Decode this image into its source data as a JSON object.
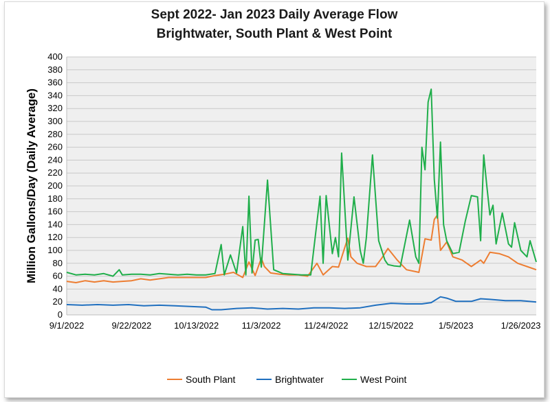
{
  "chart_data": {
    "type": "line",
    "title": "Sept 2022- Jan 2023 Daily Average Flow",
    "subtitle": "Brightwater, South Plant & West Point",
    "xlabel": "",
    "ylabel": "Million Gallons/Day (Daily Average)",
    "ylim": [
      0,
      400
    ],
    "ytick_step": 20,
    "x_start": "9/1/2022",
    "x_end": "1/31/2023",
    "x_ticks": [
      "9/1/2022",
      "9/22/2022",
      "10/13/2022",
      "11/3/2022",
      "11/24/2022",
      "12/15/2022",
      "1/5/2023",
      "1/26/2023"
    ],
    "grid": true,
    "legend_position": "bottom",
    "series": [
      {
        "name": "South Plant",
        "color": "#ED7D31",
        "x": [
          "9/1/2022",
          "9/4/2022",
          "9/7/2022",
          "9/10/2022",
          "9/13/2022",
          "9/16/2022",
          "9/19/2022",
          "9/22/2022",
          "9/25/2022",
          "9/28/2022",
          "10/1/2022",
          "10/4/2022",
          "10/7/2022",
          "10/10/2022",
          "10/13/2022",
          "10/16/2022",
          "10/19/2022",
          "10/22/2022",
          "10/25/2022",
          "10/28/2022",
          "10/30/2022",
          "11/1/2022",
          "11/3/2022",
          "11/4/2022",
          "11/6/2022",
          "11/9/2022",
          "11/12/2022",
          "11/15/2022",
          "11/18/2022",
          "11/21/2022",
          "11/23/2022",
          "11/26/2022",
          "11/28/2022",
          "12/1/2022",
          "12/2/2022",
          "12/4/2022",
          "12/7/2022",
          "12/10/2022",
          "12/12/2022",
          "12/14/2022",
          "12/17/2022",
          "12/20/2022",
          "12/23/2022",
          "12/24/2022",
          "12/26/2022",
          "12/28/2022",
          "12/29/2022",
          "12/30/2022",
          "12/31/2022",
          "1/2/2023",
          "1/4/2023",
          "1/7/2023",
          "1/10/2023",
          "1/13/2023",
          "1/14/2023",
          "1/16/2023",
          "1/19/2023",
          "1/22/2023",
          "1/25/2023",
          "1/28/2023",
          "1/31/2023"
        ],
        "values": [
          52,
          50,
          53,
          51,
          53,
          51,
          52,
          53,
          56,
          54,
          56,
          58,
          58,
          58,
          58,
          58,
          61,
          63,
          66,
          58,
          82,
          61,
          88,
          75,
          65,
          63,
          62,
          62,
          60,
          80,
          62,
          75,
          74,
          119,
          90,
          80,
          75,
          75,
          88,
          103,
          85,
          70,
          67,
          66,
          118,
          116,
          148,
          155,
          100,
          113,
          90,
          85,
          75,
          85,
          80,
          97,
          95,
          90,
          80,
          75,
          70
        ],
        "values_note": "omit"
      },
      {
        "name": "Brightwater",
        "color": "#1F6FBF",
        "x": [
          "9/1/2022",
          "9/6/2022",
          "9/11/2022",
          "9/16/2022",
          "9/21/2022",
          "9/26/2022",
          "10/1/2022",
          "10/6/2022",
          "10/11/2022",
          "10/16/2022",
          "10/18/2022",
          "10/21/2022",
          "10/26/2022",
          "10/31/2022",
          "11/5/2022",
          "11/10/2022",
          "11/15/2022",
          "11/20/2022",
          "11/25/2022",
          "11/30/2022",
          "12/5/2022",
          "12/10/2022",
          "12/15/2022",
          "12/20/2022",
          "12/25/2022",
          "12/28/2022",
          "12/31/2022",
          "1/2/2023",
          "1/5/2023",
          "1/10/2023",
          "1/13/2023",
          "1/16/2023",
          "1/21/2023",
          "1/26/2023",
          "1/31/2023"
        ],
        "values": [
          16,
          15,
          16,
          15,
          16,
          14,
          15,
          14,
          13,
          12,
          8,
          8,
          10,
          11,
          9,
          10,
          9,
          11,
          11,
          10,
          11,
          15,
          18,
          17,
          17,
          19,
          28,
          26,
          21,
          21,
          25,
          24,
          22,
          22,
          20
        ]
      },
      {
        "name": "West Point",
        "color": "#1FAE4A",
        "x": [
          "9/1/2022",
          "9/4/2022",
          "9/7/2022",
          "9/10/2022",
          "9/13/2022",
          "9/16/2022",
          "9/18/2022",
          "9/19/2022",
          "9/22/2022",
          "9/25/2022",
          "9/28/2022",
          "10/1/2022",
          "10/4/2022",
          "10/7/2022",
          "10/10/2022",
          "10/13/2022",
          "10/16/2022",
          "10/19/2022",
          "10/21/2022",
          "10/22/2022",
          "10/24/2022",
          "10/26/2022",
          "10/28/2022",
          "10/29/2022",
          "10/30/2022",
          "10/31/2022",
          "11/1/2022",
          "11/2/2022",
          "11/3/2022",
          "11/5/2022",
          "11/7/2022",
          "11/10/2022",
          "11/13/2022",
          "11/16/2022",
          "11/19/2022",
          "11/22/2022",
          "11/23/2022",
          "11/24/2022",
          "11/26/2022",
          "11/27/2022",
          "11/28/2022",
          "11/29/2022",
          "12/1/2022",
          "12/3/2022",
          "12/5/2022",
          "12/6/2022",
          "12/7/2022",
          "12/9/2022",
          "12/11/2022",
          "12/13/2022",
          "12/14/2022",
          "12/16/2022",
          "12/18/2022",
          "12/21/2022",
          "12/23/2022",
          "12/24/2022",
          "12/25/2022",
          "12/26/2022",
          "12/27/2022",
          "12/28/2022",
          "12/29/2022",
          "12/30/2022",
          "12/31/2022",
          "1/1/2023",
          "1/2/2023",
          "1/3/2023",
          "1/4/2023",
          "1/6/2023",
          "1/8/2023",
          "1/10/2023",
          "1/12/2023",
          "1/13/2023",
          "1/14/2023",
          "1/15/2023",
          "1/16/2023",
          "1/17/2023",
          "1/18/2023",
          "1/20/2023",
          "1/22/2023",
          "1/23/2023",
          "1/24/2023",
          "1/26/2023",
          "1/28/2023",
          "1/29/2023",
          "1/31/2023"
        ],
        "values": [
          66,
          62,
          63,
          62,
          64,
          60,
          70,
          62,
          63,
          63,
          62,
          64,
          63,
          62,
          63,
          62,
          62,
          64,
          109,
          62,
          93,
          65,
          137,
          62,
          184,
          65,
          116,
          117,
          74,
          209,
          70,
          64,
          63,
          62,
          62,
          184,
          80,
          185,
          95,
          120,
          90,
          251,
          85,
          183,
          100,
          80,
          120,
          248,
          115,
          85,
          78,
          76,
          75,
          147,
          90,
          80,
          260,
          225,
          330,
          350,
          210,
          150,
          268,
          140,
          115,
          105,
          95,
          97,
          145,
          185,
          183,
          115,
          248,
          200,
          155,
          170,
          110,
          158,
          110,
          105,
          143,
          100,
          90,
          115,
          82
        ]
      }
    ]
  }
}
